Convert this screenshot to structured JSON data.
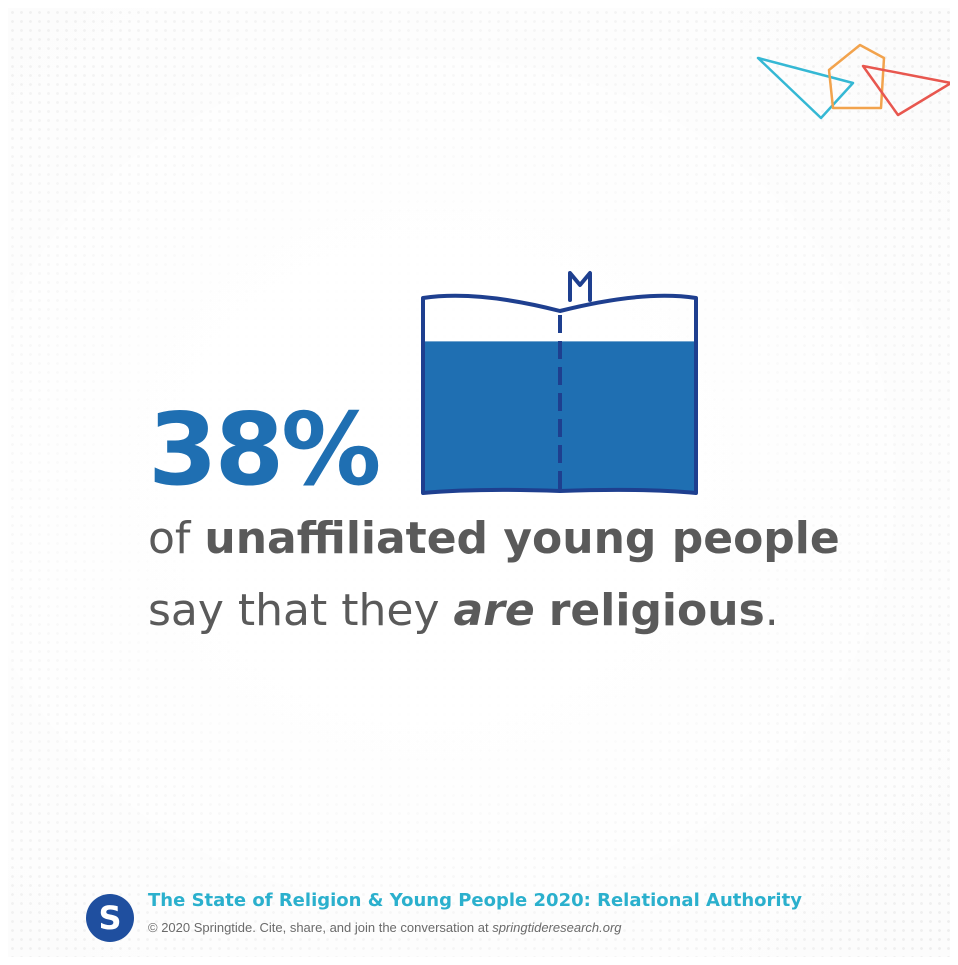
{
  "stat": {
    "value": "38%",
    "fill_fraction": 0.38
  },
  "statement": {
    "line1": {
      "prefix": "of ",
      "bold": "unaffiliated young people"
    },
    "line2": {
      "prefix": "say that they ",
      "emphasis": "are",
      "space": " ",
      "bold": "religious",
      "suffix": "."
    }
  },
  "footer": {
    "title": "The State of Religion & Young People 2020: Relational Authority",
    "copyright": "© 2020 Springtide. Cite, share, and join the conversation at ",
    "url": "springtideresearch.org",
    "logo_letter": "S"
  },
  "colors": {
    "brand_blue": "#1f6fb2",
    "book_outline": "#1e3f8f",
    "footer_teal": "#2bb0cd",
    "text_gray": "#5a5a5a",
    "deco_teal": "#35b8d4",
    "deco_orange": "#f2a34d",
    "deco_red": "#e8574f"
  },
  "icons": [
    "open-book-icon",
    "bookmark-icon",
    "springtide-logo-icon",
    "triangle-decoration"
  ]
}
